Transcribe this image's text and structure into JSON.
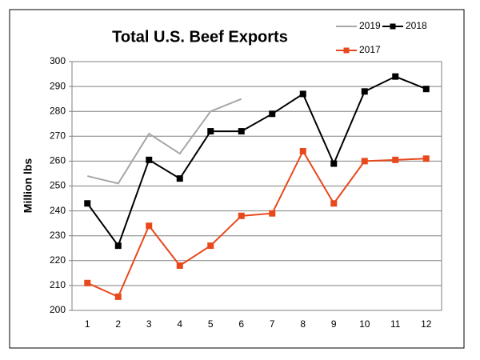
{
  "chart_data": {
    "type": "line",
    "title": "Total U.S. Beef Exports",
    "y_label": "Million lbs",
    "categories": [
      "1",
      "2",
      "3",
      "4",
      "5",
      "6",
      "7",
      "8",
      "9",
      "10",
      "11",
      "12"
    ],
    "series": [
      {
        "name": "2019",
        "color": "#a6a6a6",
        "marker": false,
        "values": [
          254,
          251,
          271,
          263,
          280,
          285,
          null,
          null,
          null,
          null,
          null,
          null
        ]
      },
      {
        "name": "2018",
        "color": "#000000",
        "marker": true,
        "values": [
          243,
          226,
          260.5,
          253,
          272,
          272,
          279,
          287,
          259,
          288,
          294,
          289
        ]
      },
      {
        "name": "2017",
        "color": "#e8491c",
        "marker": true,
        "values": [
          211,
          205.5,
          234,
          218,
          226,
          238,
          239,
          264,
          243,
          260,
          260.5,
          261
        ]
      }
    ],
    "ylim": [
      200,
      300
    ],
    "yticks": [
      200,
      210,
      220,
      230,
      240,
      250,
      260,
      270,
      280,
      290,
      300
    ],
    "grid": true
  }
}
